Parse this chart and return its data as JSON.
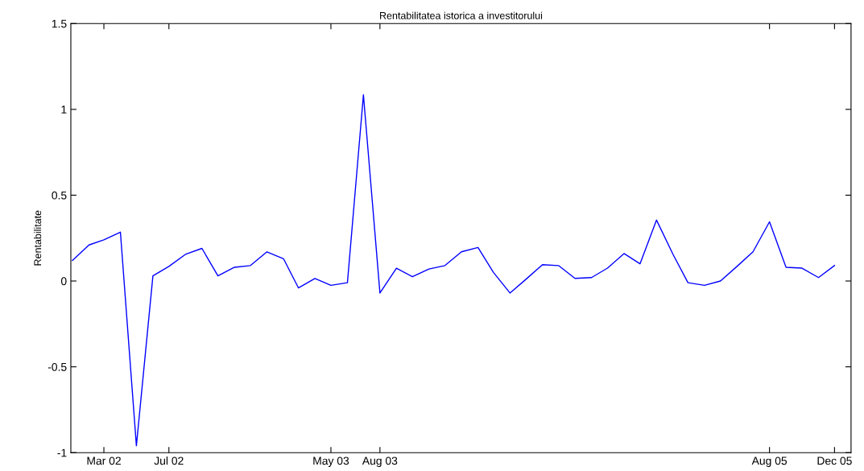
{
  "chart_data": {
    "type": "line",
    "title": "Rentabilitatea istorica a investitorului",
    "ylabel": "Rentabilitate",
    "x": [
      "2002-01",
      "2002-02",
      "2002-03",
      "2002-04",
      "2002-05",
      "2002-06",
      "2002-07",
      "2002-08",
      "2002-09",
      "2002-10",
      "2002-11",
      "2002-12",
      "2003-01",
      "2003-02",
      "2003-03",
      "2003-04",
      "2003-05",
      "2003-06",
      "2003-07",
      "2003-08",
      "2003-09",
      "2003-10",
      "2003-11",
      "2003-12",
      "2004-01",
      "2004-02",
      "2004-03",
      "2004-04",
      "2004-05",
      "2004-06",
      "2004-07",
      "2004-08",
      "2004-09",
      "2004-10",
      "2004-11",
      "2004-12",
      "2005-01",
      "2005-02",
      "2005-03",
      "2005-04",
      "2005-05",
      "2005-06",
      "2005-07",
      "2005-08",
      "2005-09",
      "2005-10",
      "2005-11",
      "2005-12"
    ],
    "series": [
      {
        "color": "#0000ff",
        "values": [
          0.12,
          0.21,
          0.24,
          0.285,
          -0.96,
          0.03,
          0.085,
          0.155,
          0.19,
          0.03,
          0.08,
          0.09,
          0.17,
          0.13,
          -0.04,
          0.015,
          -0.025,
          -0.01,
          1.085,
          -0.07,
          0.075,
          0.025,
          0.07,
          0.09,
          0.17,
          0.195,
          0.05,
          -0.07,
          0.01,
          0.095,
          0.09,
          0.015,
          0.02,
          0.075,
          0.16,
          0.1,
          0.355,
          0.155,
          -0.01,
          -0.025,
          0.0,
          0.085,
          0.17,
          0.345,
          0.08,
          0.075,
          0.02,
          0.09
        ]
      }
    ],
    "xlim": [
      "2001-12-29",
      "2006-01-01"
    ],
    "xticks": [
      {
        "value": "2002-03",
        "label": "Mar 02"
      },
      {
        "value": "2002-07",
        "label": "Jul 02"
      },
      {
        "value": "2003-05",
        "label": "May 03"
      },
      {
        "value": "2003-08",
        "label": "Aug 03"
      },
      {
        "value": "2005-08",
        "label": "Aug 05"
      },
      {
        "value": "2005-12",
        "label": "Dec 05"
      }
    ],
    "ylim": [
      -1,
      1.5
    ],
    "yticks": [
      -1,
      -0.5,
      0,
      0.5,
      1,
      1.5
    ],
    "grid": false,
    "marker": "none",
    "line_style": "solid"
  }
}
